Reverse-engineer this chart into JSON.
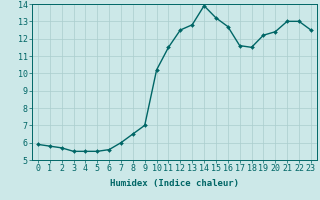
{
  "x": [
    0,
    1,
    2,
    3,
    4,
    5,
    6,
    7,
    8,
    9,
    10,
    11,
    12,
    13,
    14,
    15,
    16,
    17,
    18,
    19,
    20,
    21,
    22,
    23
  ],
  "y": [
    5.9,
    5.8,
    5.7,
    5.5,
    5.5,
    5.5,
    5.6,
    6.0,
    6.5,
    7.0,
    10.2,
    11.5,
    12.5,
    12.8,
    13.9,
    13.2,
    12.7,
    11.6,
    11.5,
    12.2,
    12.4,
    13.0,
    13.0,
    12.5
  ],
  "line_color": "#006666",
  "marker": "D",
  "marker_size": 2,
  "xlabel": "Humidex (Indice chaleur)",
  "ylim": [
    5,
    14
  ],
  "xlim": [
    -0.5,
    23.5
  ],
  "yticks": [
    5,
    6,
    7,
    8,
    9,
    10,
    11,
    12,
    13,
    14
  ],
  "xticks": [
    0,
    1,
    2,
    3,
    4,
    5,
    6,
    7,
    8,
    9,
    10,
    11,
    12,
    13,
    14,
    15,
    16,
    17,
    18,
    19,
    20,
    21,
    22,
    23
  ],
  "background_color": "#cce8e8",
  "grid_color": "#aacece",
  "line_width": 1.0,
  "xlabel_fontsize": 6.5,
  "tick_fontsize": 6
}
